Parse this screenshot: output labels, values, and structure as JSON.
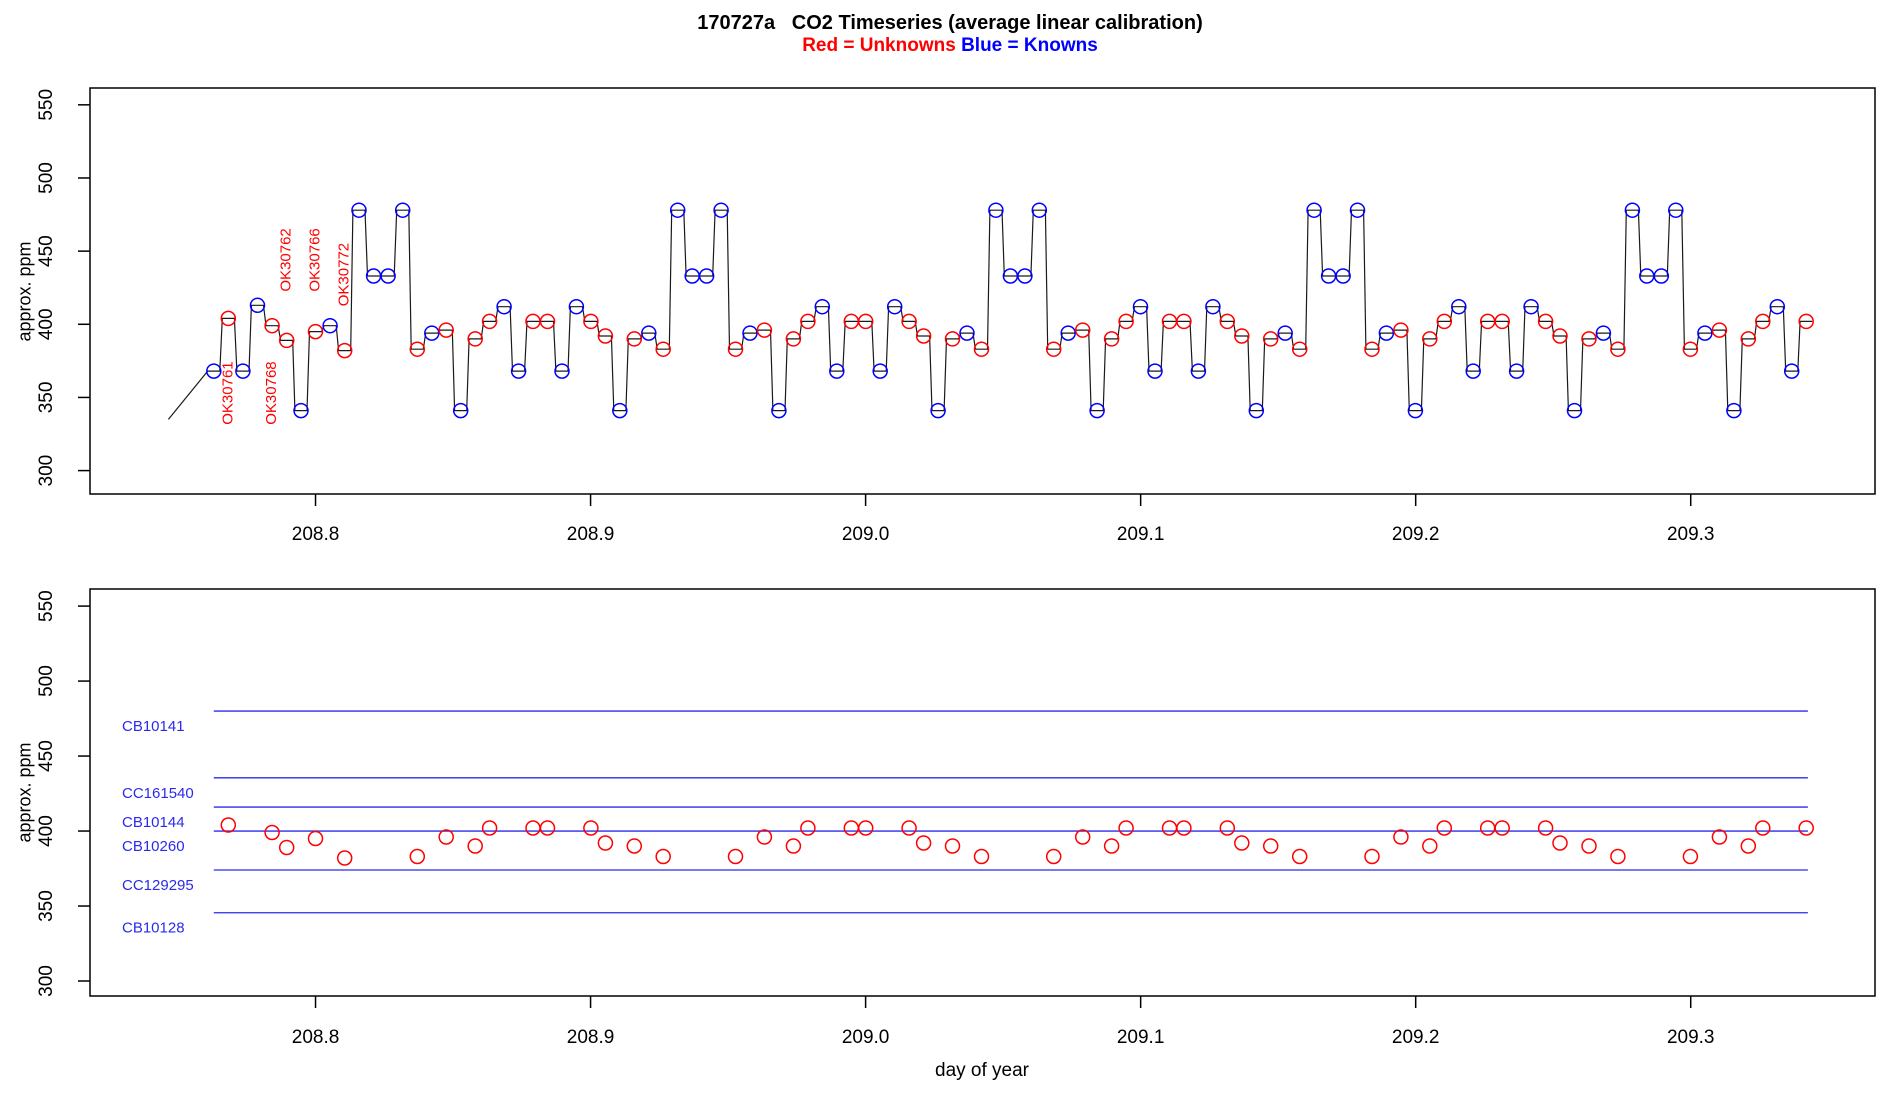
{
  "header": {
    "title": "170727a   CO2 Timeseries (average linear calibration)",
    "legend_red": "Red = Unknowns",
    "legend_blue": "Blue = Knowns"
  },
  "axis_labels": {
    "y_top": "approx. ppm",
    "y_bottom": "approx. ppm",
    "x_bottom": "day of year"
  },
  "colors": {
    "unknown": "#ff0000",
    "known": "#0000ff",
    "trace_line": "#1a1a1a",
    "reference_line": "#2a2aee",
    "axis": "#000000"
  },
  "chart_data": [
    {
      "type": "line",
      "panel": "top",
      "ylabel": "approx. ppm",
      "xlim": [
        208.718,
        209.367
      ],
      "ylim": [
        284,
        561.5
      ],
      "xticks": [
        208.8,
        208.9,
        209.0,
        209.1,
        209.2,
        209.3
      ],
      "yticks": [
        300,
        350,
        400,
        450,
        500,
        550
      ],
      "legend": "Red = Unknowns, Blue = Knowns",
      "line_start": [
        208.7465,
        335
      ],
      "start_points": [
        [
          208.763,
          368,
          "K"
        ],
        [
          208.7683,
          404,
          "U"
        ],
        [
          208.7736,
          368,
          "K"
        ],
        [
          208.7789,
          413,
          "K"
        ],
        [
          208.7842,
          399,
          "U"
        ],
        [
          208.7895,
          389,
          "U"
        ],
        [
          208.7947,
          341,
          "K"
        ],
        [
          208.8,
          395,
          "U"
        ],
        [
          208.8053,
          399,
          "K"
        ],
        [
          208.8106,
          382,
          "U"
        ],
        [
          208.8158,
          478,
          "K"
        ],
        [
          208.8211,
          433,
          "K"
        ],
        [
          208.8264,
          433,
          "K"
        ],
        [
          208.8317,
          478,
          "K"
        ]
      ],
      "cycle_template": [
        [
          383,
          "U"
        ],
        [
          394,
          "K"
        ],
        [
          396,
          "U"
        ],
        [
          341,
          "K"
        ],
        [
          390,
          "U"
        ],
        [
          402,
          "U"
        ],
        [
          412,
          "K"
        ],
        [
          368,
          "K"
        ],
        [
          402,
          "U"
        ],
        [
          402,
          "U"
        ],
        [
          368,
          "K"
        ],
        [
          412,
          "K"
        ],
        [
          402,
          "U"
        ],
        [
          392,
          "U"
        ],
        [
          341,
          "K"
        ],
        [
          390,
          "U"
        ],
        [
          394,
          "K"
        ],
        [
          383,
          "U"
        ],
        [
          478,
          "K"
        ],
        [
          433,
          "K"
        ],
        [
          433,
          "K"
        ],
        [
          478,
          "K"
        ]
      ],
      "cycle_start_days": [
        208.837,
        208.9527,
        209.0684,
        209.1841,
        209.2999
      ],
      "last_cycle_points": 9,
      "point_interval_days": 0.00526,
      "annotations": [
        {
          "label": "OK30761",
          "day": 208.7683,
          "ppm": 353
        },
        {
          "label": "OK30768",
          "day": 208.7842,
          "ppm": 353
        },
        {
          "label": "OK30762",
          "day": 208.7895,
          "ppm": 444
        },
        {
          "label": "OK30766",
          "day": 208.8,
          "ppm": 444
        },
        {
          "label": "OK30772",
          "day": 208.8106,
          "ppm": 434
        }
      ]
    },
    {
      "type": "scatter",
      "panel": "bottom",
      "ylabel": "approx. ppm",
      "xlabel": "day of year",
      "xlim": [
        208.718,
        209.367
      ],
      "ylim": [
        290,
        561.4
      ],
      "xticks": [
        208.8,
        208.9,
        209.0,
        209.1,
        209.2,
        209.3
      ],
      "yticks": [
        300,
        350,
        400,
        450,
        500,
        550
      ],
      "reference_lines": [
        {
          "label": "CB10141",
          "ppm": 480.0
        },
        {
          "label": "CC161540",
          "ppm": 435.5
        },
        {
          "label": "CB10144",
          "ppm": 416.0
        },
        {
          "label": "CB10260",
          "ppm": 400.0
        },
        {
          "label": "CC129295",
          "ppm": 374.0
        },
        {
          "label": "CB10128",
          "ppm": 345.5
        }
      ],
      "line_span_days": [
        208.763,
        209.3426
      ],
      "scatter_source": "unknown (red) points of top panel, same day and ppm values"
    }
  ]
}
